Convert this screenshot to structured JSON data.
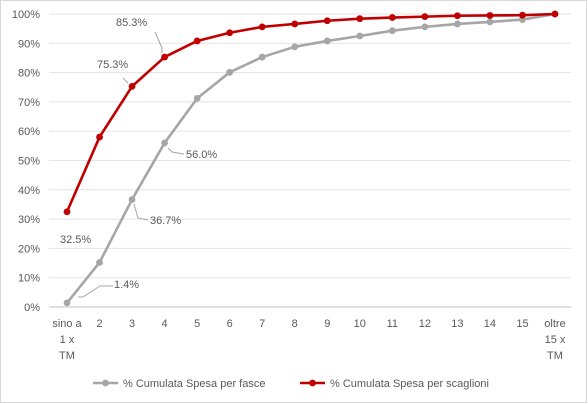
{
  "chart_data": {
    "type": "line",
    "categories": [
      [
        "sino a",
        "1 x",
        "TM"
      ],
      [
        "2"
      ],
      [
        "3"
      ],
      [
        "4"
      ],
      [
        "5"
      ],
      [
        "6"
      ],
      [
        "7"
      ],
      [
        "8"
      ],
      [
        "9"
      ],
      [
        "10"
      ],
      [
        "11"
      ],
      [
        "12"
      ],
      [
        "13"
      ],
      [
        "14"
      ],
      [
        "15"
      ],
      [
        "oltre",
        "15 x",
        "TM"
      ]
    ],
    "yticks": [
      "0%",
      "10%",
      "20%",
      "30%",
      "40%",
      "50%",
      "60%",
      "70%",
      "80%",
      "90%",
      "100%"
    ],
    "ylim": [
      0,
      100
    ],
    "grid": true,
    "legend_position": "bottom",
    "series": [
      {
        "name": "% Cumulata Spesa per fasce",
        "color": "#a6a6a6",
        "values": [
          1.4,
          15.2,
          36.7,
          56.0,
          71.2,
          80.1,
          85.3,
          88.8,
          90.8,
          92.5,
          94.3,
          95.6,
          96.6,
          97.3,
          98.1,
          100.0
        ]
      },
      {
        "name": "% Cumulata Spesa per scaglioni",
        "color": "#c00000",
        "values": [
          32.5,
          58.0,
          75.3,
          85.3,
          90.8,
          93.6,
          95.6,
          96.6,
          97.7,
          98.4,
          98.8,
          99.1,
          99.4,
          99.5,
          99.6,
          100.0
        ]
      }
    ],
    "annotations": [
      {
        "series": 0,
        "index": 0,
        "text": "1.4%"
      },
      {
        "series": 0,
        "index": 2,
        "text": "36.7%"
      },
      {
        "series": 0,
        "index": 3,
        "text": "56.0%"
      },
      {
        "series": 1,
        "index": 0,
        "text": "32.5%"
      },
      {
        "series": 1,
        "index": 2,
        "text": "75.3%"
      },
      {
        "series": 1,
        "index": 3,
        "text": "85.3%"
      }
    ]
  }
}
